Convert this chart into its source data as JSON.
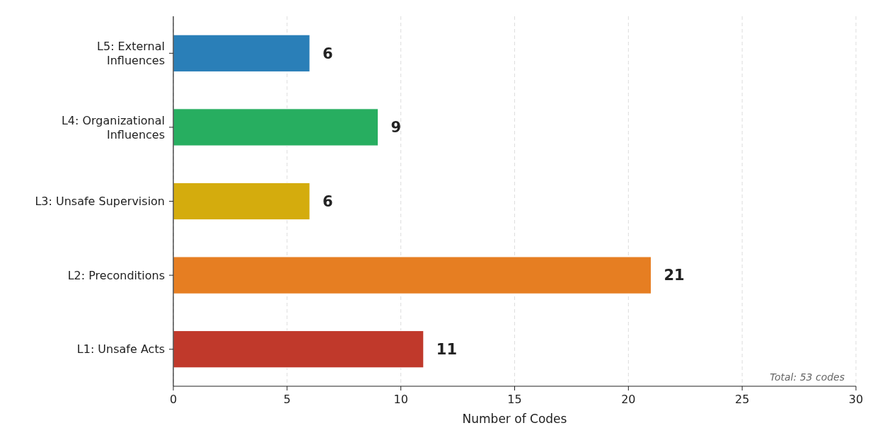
{
  "chart_data": {
    "type": "bar",
    "orientation": "horizontal",
    "categories": [
      "L5: External\nInfluences",
      "L4: Organizational\nInfluences",
      "L3: Unsafe Supervision",
      "L2: Preconditions",
      "L1: Unsafe Acts"
    ],
    "values": [
      6,
      9,
      6,
      21,
      11
    ],
    "colors": [
      "#2a7fb8",
      "#27ae60",
      "#d4ac0d",
      "#e67e22",
      "#c0392b"
    ],
    "xlim": [
      0,
      30
    ],
    "xticks": [
      0,
      5,
      10,
      15,
      20,
      25,
      30
    ],
    "xlabel": "Number of Codes",
    "grid": "x",
    "data_labels": true,
    "annotations": [
      "Total: 53 codes"
    ]
  }
}
